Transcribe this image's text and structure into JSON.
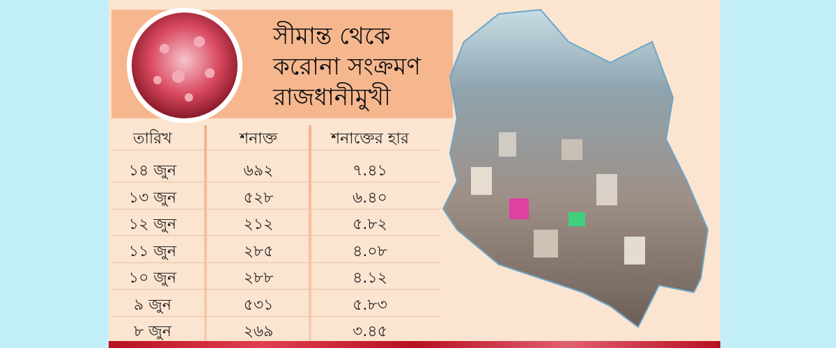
{
  "title": {
    "lines": [
      "সীমান্ত থেকে",
      "করোনা সংক্রমণ",
      "রাজধানীমুখী"
    ]
  },
  "table": {
    "header": [
      "তারিখ",
      "শনাক্ত",
      "শনাক্তের হার"
    ],
    "rows": [
      [
        "১৪ জুন",
        "৬৯২",
        "৭.৪১"
      ],
      [
        "১৩ জুন",
        "৫২৮",
        "৬.৪০"
      ],
      [
        "১২ জুন",
        "২১২",
        "৫.৮২"
      ],
      [
        "১১ জুন",
        "২৮৫",
        "৪.০৮"
      ],
      [
        "১০ জুন",
        "২৮৮",
        "৪.১২"
      ],
      [
        "৯ জুন",
        "৫৩১",
        "৫.৮৩"
      ],
      [
        "৮ জুন",
        "২৬৯",
        "৩.৪৫"
      ]
    ]
  }
}
